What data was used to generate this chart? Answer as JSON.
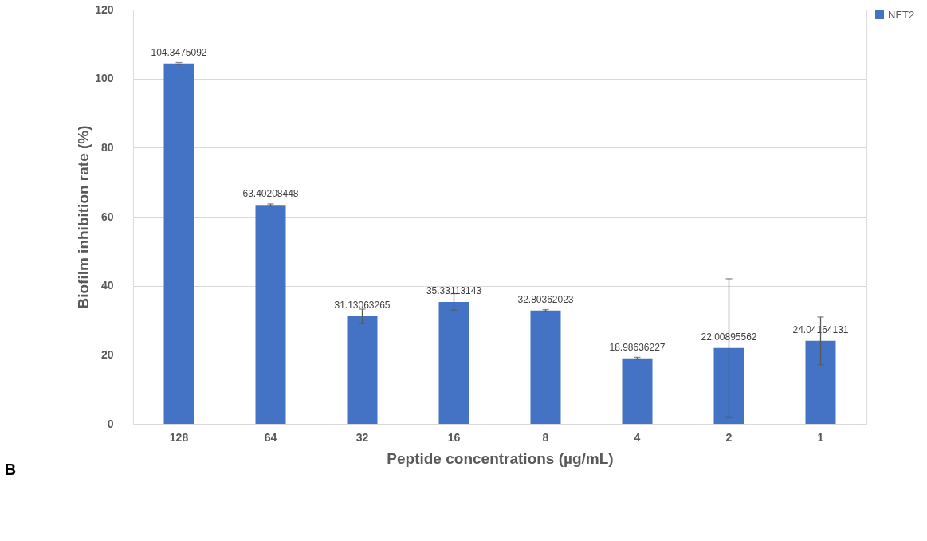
{
  "chart_data": {
    "type": "bar",
    "xlabel": "Peptide concentrations (µg/mL)",
    "ylabel": "Biofilm inhibition rate (%)",
    "categories": [
      "128",
      "64",
      "32",
      "16",
      "8",
      "4",
      "2",
      "1"
    ],
    "series": [
      {
        "name": "NET2",
        "color": "#4472c4",
        "values": [
          104.3475092,
          63.40208448,
          31.13063265,
          35.33113143,
          32.80362023,
          18.98636227,
          22.00895562,
          24.04164131
        ],
        "errors": [
          0.3,
          0.3,
          2.1,
          2.4,
          0.3,
          0.3,
          20,
          6.9
        ]
      }
    ],
    "data_labels": true,
    "ylim": [
      0,
      120
    ],
    "yticks": [
      0,
      20,
      40,
      60,
      80,
      100,
      120
    ],
    "grid": "y",
    "legend": "right",
    "annotations": [
      "B"
    ]
  }
}
